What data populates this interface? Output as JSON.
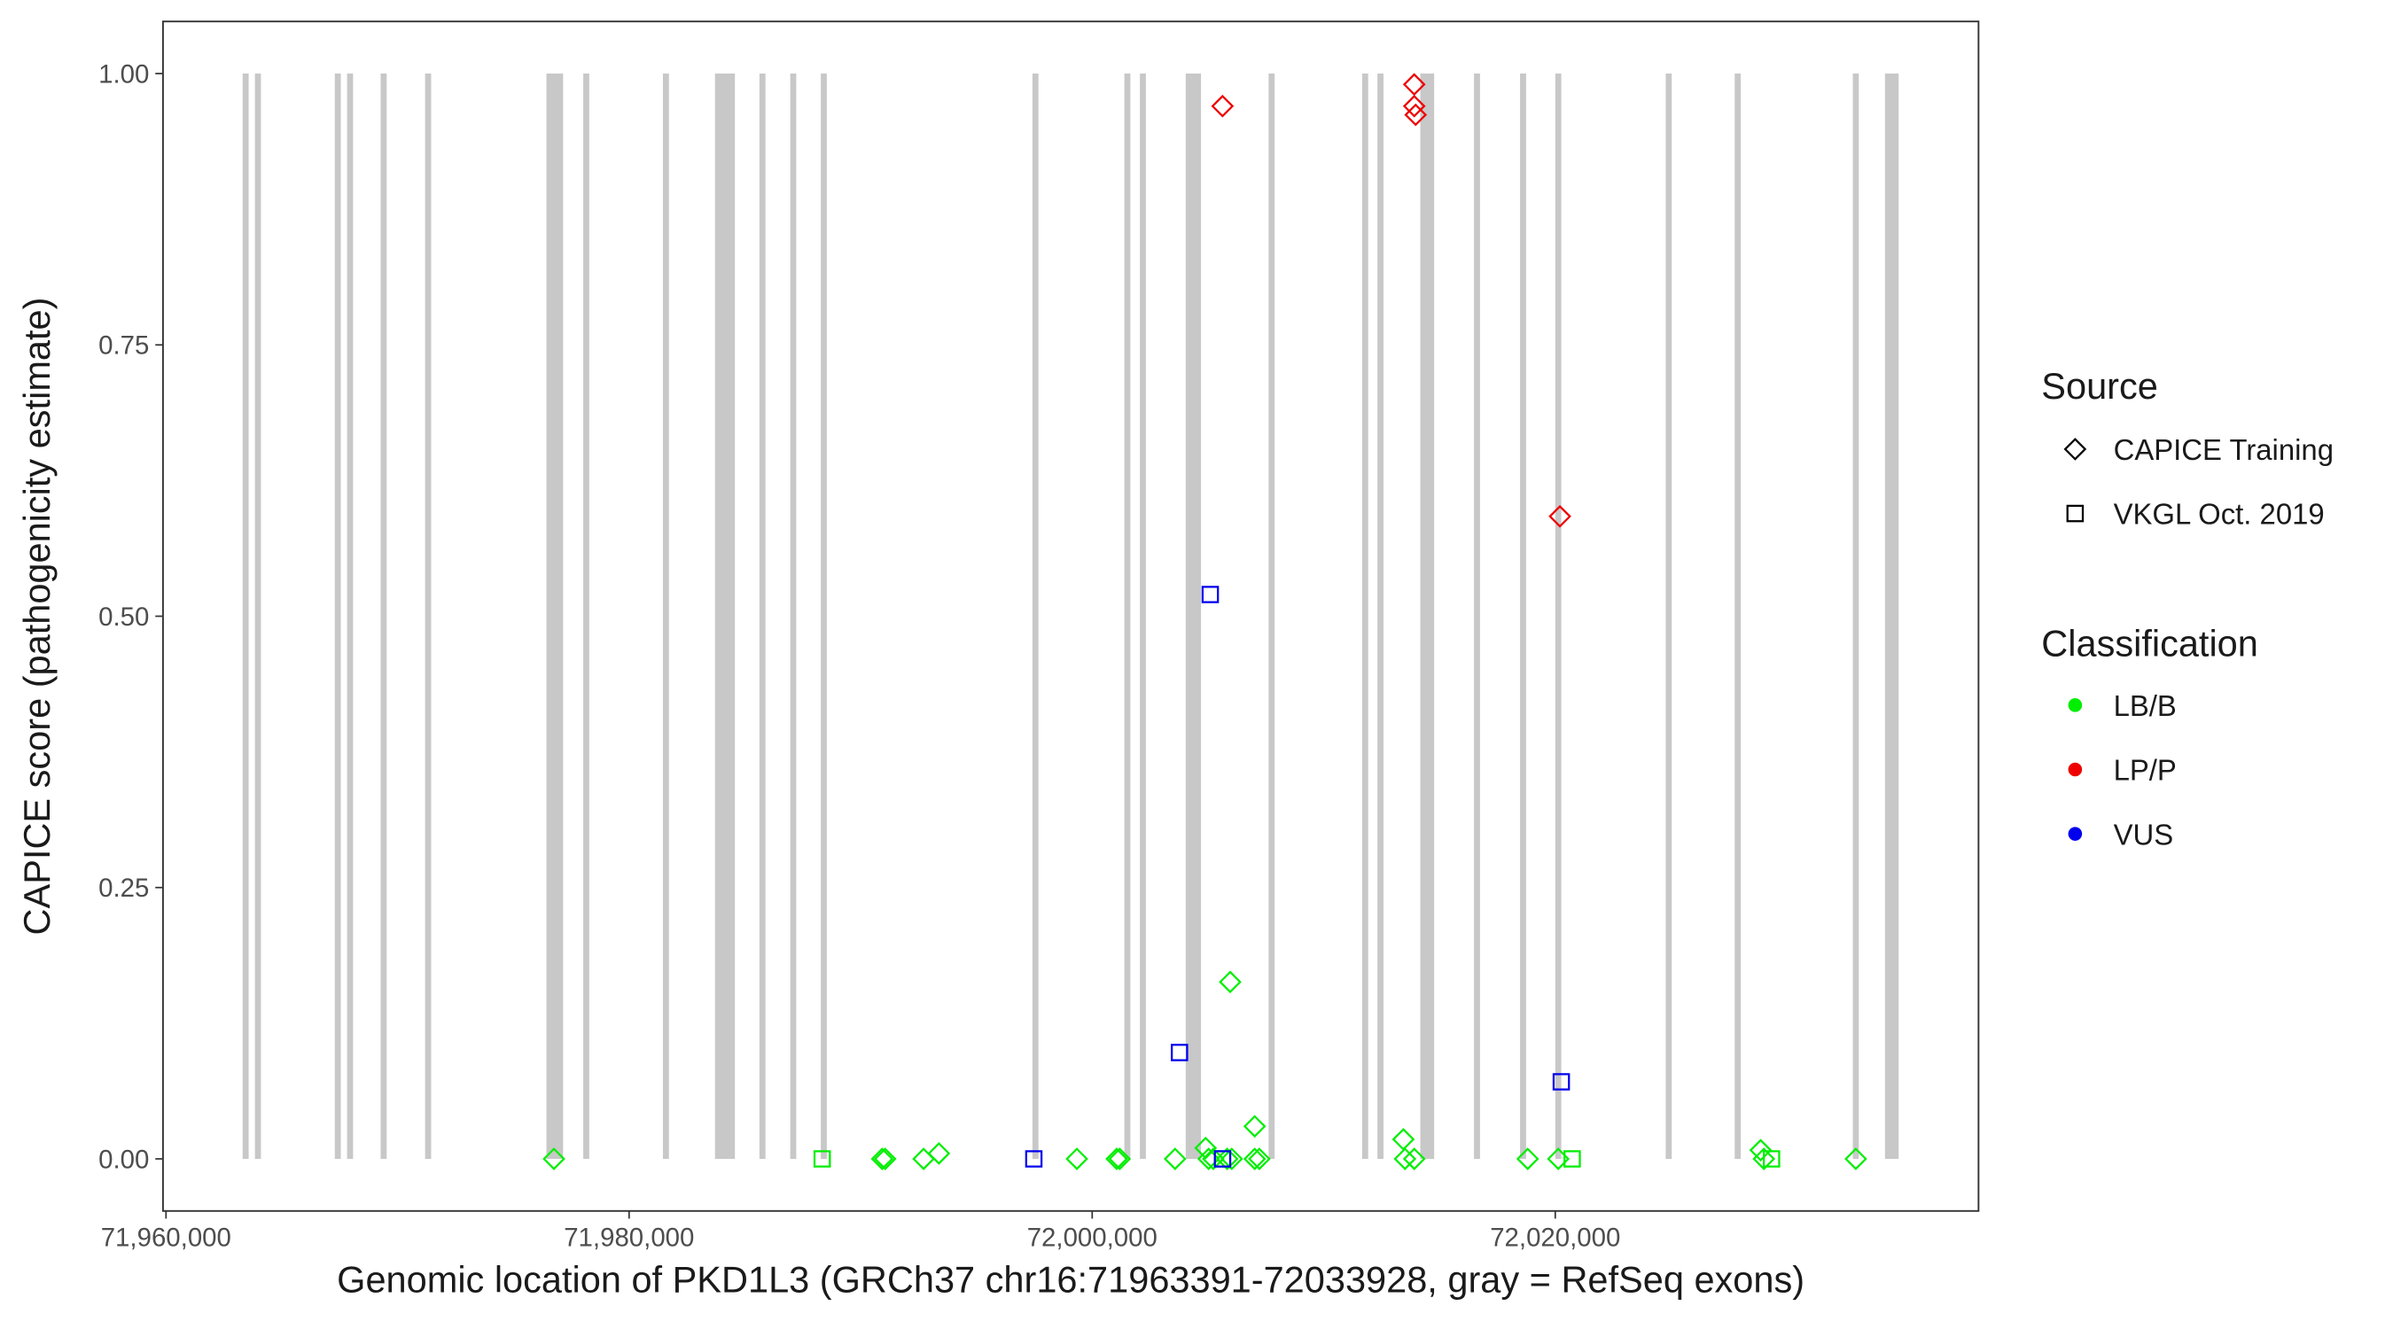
{
  "chart_data": {
    "type": "scatter",
    "x_label": "Genomic location of PKD1L3 (GRCh37 chr16:71963391-72033928, gray = RefSeq exons)",
    "y_label": "CAPICE score (pathogenicity estimate)",
    "xlim": [
      71959870,
      72038280
    ],
    "ylim": [
      -0.048,
      1.048
    ],
    "xticks": [
      {
        "value": 71960000,
        "label": "71,960,000"
      },
      {
        "value": 71980000,
        "label": "71,980,000"
      },
      {
        "value": 72000000,
        "label": "72,000,000"
      },
      {
        "value": 72020000,
        "label": "72,020,000"
      }
    ],
    "yticks": [
      {
        "value": 0,
        "label": "0.00"
      },
      {
        "value": 0.25,
        "label": "0.25"
      },
      {
        "value": 0.5,
        "label": "0.50"
      },
      {
        "value": 0.75,
        "label": "0.75"
      },
      {
        "value": 1,
        "label": "1.00"
      }
    ],
    "exon_color": "#c8c8c8",
    "exons": [
      [
        71963310,
        71963570
      ],
      [
        71963840,
        71964100
      ],
      [
        71967290,
        71967550
      ],
      [
        71967820,
        71968080
      ],
      [
        71969270,
        71969530
      ],
      [
        71971190,
        71971450
      ],
      [
        71976430,
        71977150
      ],
      [
        71978020,
        71978280
      ],
      [
        71981460,
        71981720
      ],
      [
        71983710,
        71984570
      ],
      [
        71985630,
        71985890
      ],
      [
        71986960,
        71987220
      ],
      [
        71988280,
        71988540
      ],
      [
        71997420,
        71997680
      ],
      [
        72001390,
        72001650
      ],
      [
        72002060,
        72002320
      ],
      [
        72004040,
        72004700
      ],
      [
        72007620,
        72007880
      ],
      [
        72011660,
        72011920
      ],
      [
        72012320,
        72012580
      ],
      [
        72014170,
        72014770
      ],
      [
        72016490,
        72016750
      ],
      [
        72018480,
        72018740
      ],
      [
        72020000,
        72020260
      ],
      [
        72024770,
        72025030
      ],
      [
        72027750,
        72028010
      ],
      [
        72032850,
        72033110
      ],
      [
        72034240,
        72034830
      ]
    ],
    "shape_legend": {
      "title": "Source",
      "items": [
        {
          "name": "CAPICE Training",
          "shape": "diamond"
        },
        {
          "name": "VKGL Oct. 2019",
          "shape": "square"
        }
      ]
    },
    "color_legend": {
      "title": "Classification",
      "items": [
        {
          "name": "LB/B",
          "color": "#00ee00"
        },
        {
          "name": "LP/P",
          "color": "#ee0000"
        },
        {
          "name": "VUS",
          "color": "#0000ee"
        }
      ]
    },
    "series": [
      {
        "source": "CAPICE Training",
        "classification": "LB/B",
        "x": [
          71976755,
          71990930,
          71991060,
          71992720,
          71993380,
          71999340,
          72001060,
          72001190,
          72003580,
          72004900,
          72005030,
          72005230,
          72005830,
          72006030,
          72005960,
          72007020,
          72007020,
          72007220,
          72013440,
          72013510,
          72013910,
          72018810,
          72020130,
          72028870,
          72029010,
          72032980
        ],
        "values": [
          0,
          0,
          0,
          0,
          0.005,
          0,
          0,
          0,
          0,
          0.01,
          0,
          0,
          0,
          0,
          0.163,
          0.03,
          0,
          0,
          0.018,
          0,
          0,
          0,
          0,
          0.008,
          0,
          0
        ]
      },
      {
        "source": "CAPICE Training",
        "classification": "LP/P",
        "x": [
          72005630,
          72013910,
          72013910,
          72013970,
          72020200
        ],
        "values": [
          0.97,
          0.99,
          0.97,
          0.962,
          0.592
        ]
      },
      {
        "source": "VKGL Oct. 2019",
        "classification": "LB/B",
        "x": [
          71988340,
          72005630,
          72020730,
          72029340
        ],
        "values": [
          0,
          0,
          0,
          0
        ]
      },
      {
        "source": "VKGL Oct. 2019",
        "classification": "VUS",
        "x": [
          71997480,
          72003770,
          72005100,
          72005630,
          72020260
        ],
        "values": [
          0,
          0.098,
          0.52,
          0,
          0.071
        ]
      }
    ]
  }
}
